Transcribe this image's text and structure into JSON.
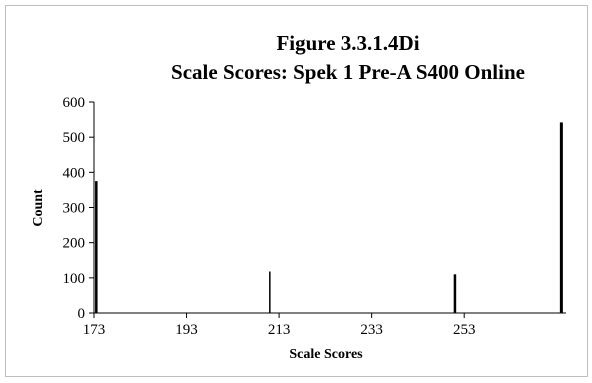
{
  "chart_data": {
    "type": "bar",
    "title": "Figure 3.3.1.4Di",
    "subtitle": "Scale Scores: Spek 1 Pre-A S400 Online",
    "xlabel": "Scale Scores",
    "ylabel": "Count",
    "xlim": [
      173,
      275
    ],
    "ylim": [
      0,
      600
    ],
    "x_ticks": [
      173,
      193,
      213,
      233,
      253
    ],
    "y_ticks": [
      0,
      100,
      200,
      300,
      400,
      500,
      600
    ],
    "grid": false,
    "points": [
      {
        "x": 173.5,
        "y": 375
      },
      {
        "x": 211,
        "y": 118
      },
      {
        "x": 251,
        "y": 110
      },
      {
        "x": 274,
        "y": 542
      }
    ],
    "bar_color": "#000000"
  }
}
